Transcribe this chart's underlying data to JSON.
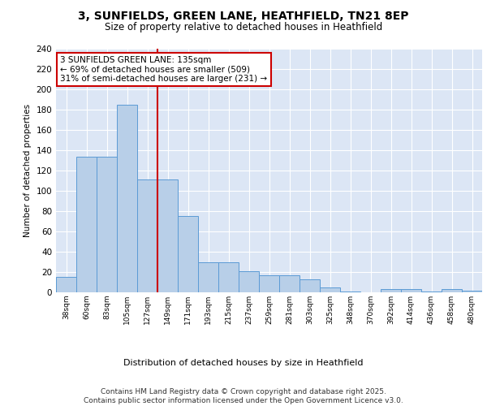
{
  "title_line1": "3, SUNFIELDS, GREEN LANE, HEATHFIELD, TN21 8EP",
  "title_line2": "Size of property relative to detached houses in Heathfield",
  "xlabel": "Distribution of detached houses by size in Heathfield",
  "ylabel": "Number of detached properties",
  "bins": [
    "38sqm",
    "60sqm",
    "83sqm",
    "105sqm",
    "127sqm",
    "149sqm",
    "171sqm",
    "193sqm",
    "215sqm",
    "237sqm",
    "259sqm",
    "281sqm",
    "303sqm",
    "325sqm",
    "348sqm",
    "370sqm",
    "392sqm",
    "414sqm",
    "436sqm",
    "458sqm",
    "480sqm"
  ],
  "values": [
    15,
    134,
    134,
    185,
    111,
    111,
    75,
    30,
    30,
    21,
    17,
    17,
    13,
    5,
    1,
    0,
    3,
    3,
    1,
    3,
    2
  ],
  "bar_color": "#b8cfe8",
  "bar_edge_color": "#5b9bd5",
  "vline_x": 4.5,
  "vline_color": "#cc0000",
  "annotation_text": "3 SUNFIELDS GREEN LANE: 135sqm\n← 69% of detached houses are smaller (509)\n31% of semi-detached houses are larger (231) →",
  "annotation_box_color": "white",
  "annotation_box_edge": "#cc0000",
  "annotation_fontsize": 7.5,
  "ylim": [
    0,
    240
  ],
  "yticks": [
    0,
    20,
    40,
    60,
    80,
    100,
    120,
    140,
    160,
    180,
    200,
    220,
    240
  ],
  "background_color": "#dce6f5",
  "footer_text": "Contains HM Land Registry data © Crown copyright and database right 2025.\nContains public sector information licensed under the Open Government Licence v3.0.",
  "footer_fontsize": 6.5
}
